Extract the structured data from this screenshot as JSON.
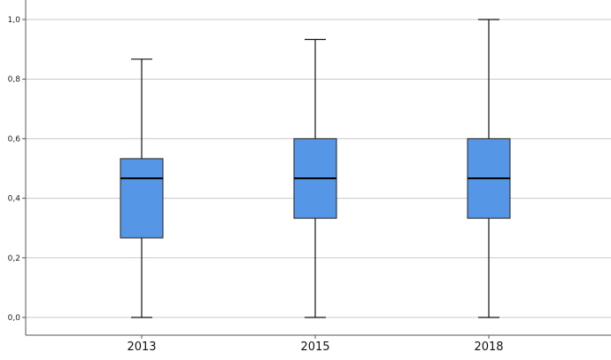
{
  "chart_data": {
    "type": "box",
    "title": "",
    "xlabel": "",
    "ylabel": "",
    "ylim": [
      0,
      1
    ],
    "grid": true,
    "y_ticks": [
      "0,0",
      "0,2",
      "0,4",
      "0,6",
      "0,8",
      "1,0"
    ],
    "y_tick_values": [
      0,
      0.2,
      0.4,
      0.6,
      0.8,
      1.0
    ],
    "categories": [
      "2013",
      "2015",
      "2018"
    ],
    "boxes": [
      {
        "label": "2013",
        "min": 0.0,
        "q1": 0.267,
        "median": 0.467,
        "q3": 0.533,
        "max": 0.867
      },
      {
        "label": "2015",
        "min": 0.0,
        "q1": 0.333,
        "median": 0.467,
        "q3": 0.6,
        "max": 0.933
      },
      {
        "label": "2018",
        "min": 0.0,
        "q1": 0.333,
        "median": 0.467,
        "q3": 0.6,
        "max": 1.0
      }
    ],
    "box_color": "#5597e6"
  }
}
